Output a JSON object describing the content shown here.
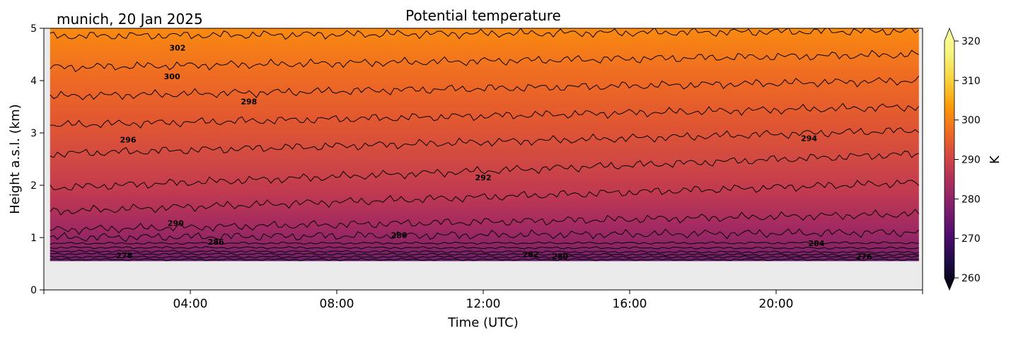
{
  "chart_data": {
    "type": "contour",
    "title": "Potential temperature",
    "location_label": "munich, 20 Jan 2025",
    "xlabel": "Time (UTC)",
    "ylabel": "Height a.s.l. (km)",
    "x_tick_labels": [
      "04:00",
      "08:00",
      "12:00",
      "16:00",
      "20:00"
    ],
    "x_ticks_hours": [
      4,
      8,
      12,
      16,
      20
    ],
    "xlim_hours": [
      0,
      24
    ],
    "y_ticks": [
      0,
      1,
      2,
      3,
      4,
      5
    ],
    "ylim": [
      0,
      5
    ],
    "data_extent": {
      "hour_start": 0.17,
      "hour_end": 23.9,
      "height_min_km": 0.55,
      "height_max_km": 5
    },
    "contours": [
      {
        "level": 276,
        "height_start": 0.58,
        "height_end": 0.58
      },
      {
        "level": 278,
        "height_start": 0.63,
        "height_end": 0.63
      },
      {
        "level": 280,
        "height_start": 0.69,
        "height_end": 0.67
      },
      {
        "level": 282,
        "height_start": 0.74,
        "height_end": 0.72
      },
      {
        "level": 284,
        "height_start": 0.81,
        "height_end": 0.8
      },
      {
        "level": 286,
        "height_start": 0.89,
        "height_end": 0.9
      },
      {
        "level": 288,
        "height_start": 1.0,
        "height_end": 1.1
      },
      {
        "level": 290,
        "height_start": 1.15,
        "height_end": 1.45
      },
      {
        "level": 292,
        "height_start": 1.5,
        "height_end": 2.05
      },
      {
        "level": 294,
        "height_start": 1.95,
        "height_end": 2.6
      },
      {
        "level": 296,
        "height_start": 2.6,
        "height_end": 3.05
      },
      {
        "level": 298,
        "height_start": 3.15,
        "height_end": 3.5
      },
      {
        "level": 300,
        "height_start": 3.7,
        "height_end": 4.0
      },
      {
        "level": 302,
        "height_start": 4.25,
        "height_end": 4.5
      },
      {
        "level": 304,
        "height_start": 4.85,
        "height_end": 4.95
      }
    ],
    "contour_labels": [
      {
        "text": "302",
        "hour": 3.65,
        "height": 4.63
      },
      {
        "text": "300",
        "hour": 3.5,
        "height": 4.08
      },
      {
        "text": "298",
        "hour": 5.6,
        "height": 3.6
      },
      {
        "text": "296",
        "hour": 2.3,
        "height": 2.87
      },
      {
        "text": "294",
        "hour": 20.9,
        "height": 2.9
      },
      {
        "text": "292",
        "hour": 12.0,
        "height": 2.15
      },
      {
        "text": "290",
        "hour": 3.6,
        "height": 1.28
      },
      {
        "text": "288",
        "hour": 9.7,
        "height": 1.05
      },
      {
        "text": "286",
        "hour": 4.7,
        "height": 0.92
      },
      {
        "text": "284",
        "hour": 21.1,
        "height": 0.89
      },
      {
        "text": "282",
        "hour": 13.3,
        "height": 0.68
      },
      {
        "text": "280",
        "hour": 14.1,
        "height": 0.64
      },
      {
        "text": "278",
        "hour": 2.2,
        "height": 0.66
      },
      {
        "text": "276",
        "hour": 22.4,
        "height": 0.64
      }
    ],
    "colorbar": {
      "label": "K",
      "ticks": [
        260,
        270,
        280,
        290,
        300,
        310,
        320
      ],
      "range": [
        260,
        320
      ],
      "extend": "both",
      "colormap": "inferno"
    },
    "grid": false,
    "background_color": "#ebebeb"
  }
}
